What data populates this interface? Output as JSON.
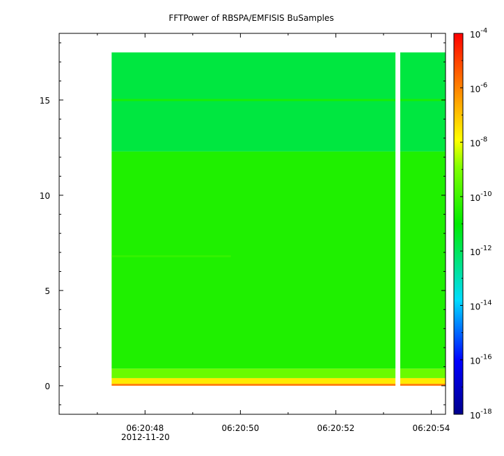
{
  "chart_data": {
    "type": "heatmap",
    "title": "FFTPower of RBSPA/EMFISIS  BuSamples",
    "xlabel": "",
    "ylabel": "",
    "x_range": [
      "06:20:46.2",
      "06:20:54.3"
    ],
    "x_data_range": [
      "06:20:47.3",
      "06:20:54.3"
    ],
    "data_gap": [
      "06:20:53.25",
      "06:20:53.35"
    ],
    "ylim": [
      -1.5,
      18.5
    ],
    "y_data_range": [
      0,
      17.5
    ],
    "x_ticks": [
      "06:20:48",
      "06:20:50",
      "06:20:52",
      "06:20:54"
    ],
    "x_date_label": "2012-11-20",
    "y_ticks": [
      0,
      5,
      10,
      15
    ],
    "colorbar": {
      "scale": "log",
      "range": [
        1e-18,
        0.0001
      ],
      "tick_bases": [
        "10",
        "10",
        "10",
        "10",
        "10",
        "10",
        "10",
        "10"
      ],
      "tick_exponents": [
        "-4",
        "-6",
        "-8",
        "-10",
        "-12",
        "-14",
        "-16",
        "-18"
      ],
      "tick_values": [
        -4,
        -6,
        -8,
        -10,
        -12,
        -14,
        -16,
        -18
      ]
    },
    "bands": [
      {
        "y_range": [
          0,
          0.1
        ],
        "log10_power": -5.8
      },
      {
        "y_range": [
          0.1,
          0.4
        ],
        "log10_power": -7.6
      },
      {
        "y_range": [
          0.4,
          0.9
        ],
        "log10_power": -9.3
      },
      {
        "y_range": [
          0.9,
          12.3
        ],
        "log10_power": -10.5
      },
      {
        "y_range": [
          12.3,
          17.5
        ],
        "log10_power": -11.7
      }
    ],
    "features": [
      {
        "y": 15.0,
        "log10_power": -10.6
      },
      {
        "y": 6.8,
        "x_range": [
          "06:20:47.3",
          "06:20:49.8"
        ],
        "log10_power": -9.9
      }
    ]
  }
}
